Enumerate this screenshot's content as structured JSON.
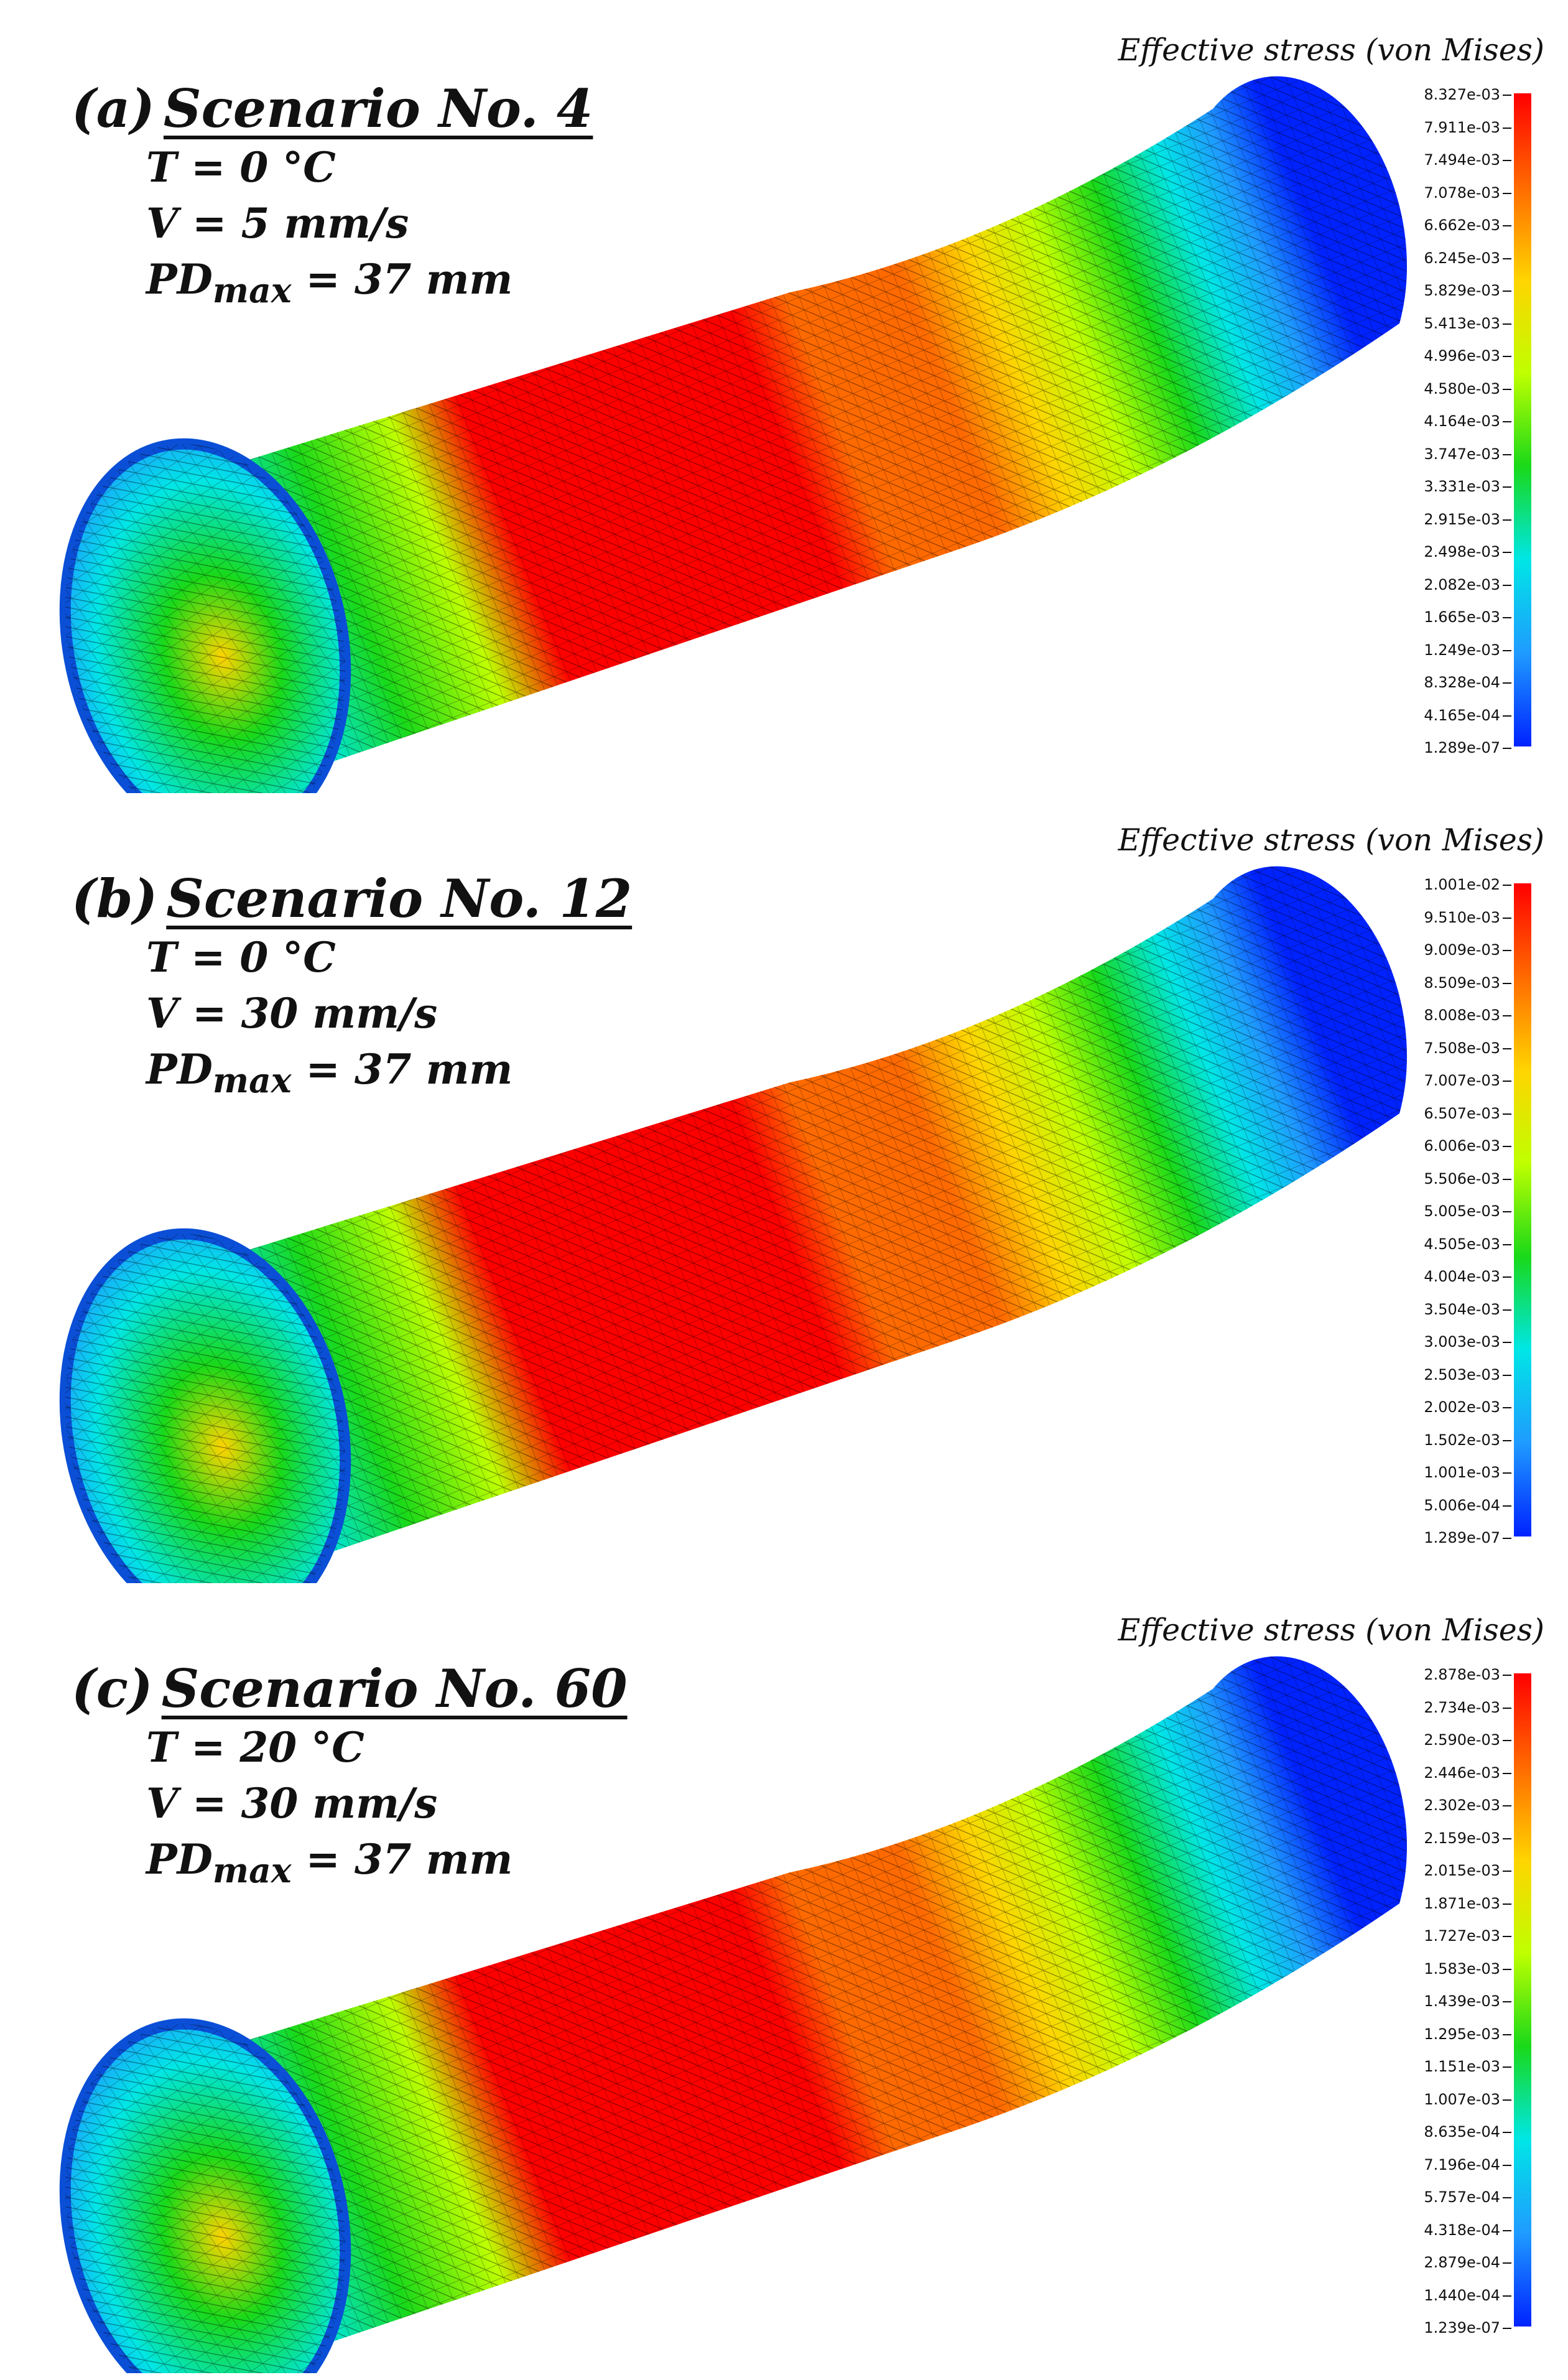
{
  "panels": [
    {
      "letter": "(a)",
      "scenario": "Scenario No. 4",
      "temperature": "T = 0 °C",
      "velocity": "V = 5 mm/s",
      "pd_label": "PD",
      "pd_sub": "max",
      "pd_value": " = 37 mm",
      "legend_title": "Effective stress (von Mises)",
      "ticks": [
        "8.327e-03",
        "7.911e-03",
        "7.494e-03",
        "7.078e-03",
        "6.662e-03",
        "6.245e-03",
        "5.829e-03",
        "5.413e-03",
        "4.996e-03",
        "4.580e-03",
        "4.164e-03",
        "3.747e-03",
        "3.331e-03",
        "2.915e-03",
        "2.498e-03",
        "2.082e-03",
        "1.665e-03",
        "1.249e-03",
        "8.328e-04",
        "4.165e-04",
        "1.289e-07"
      ]
    },
    {
      "letter": "(b)",
      "scenario": "Scenario No. 12",
      "temperature": "T = 0 °C",
      "velocity": "V = 30 mm/s",
      "pd_label": "PD",
      "pd_sub": "max",
      "pd_value": " = 37 mm",
      "legend_title": "Effective stress (von Mises)",
      "ticks": [
        "1.001e-02",
        "9.510e-03",
        "9.009e-03",
        "8.509e-03",
        "8.008e-03",
        "7.508e-03",
        "7.007e-03",
        "6.507e-03",
        "6.006e-03",
        "5.506e-03",
        "5.005e-03",
        "4.505e-03",
        "4.004e-03",
        "3.504e-03",
        "3.003e-03",
        "2.503e-03",
        "2.002e-03",
        "1.502e-03",
        "1.001e-03",
        "5.006e-04",
        "1.289e-07"
      ]
    },
    {
      "letter": "(c)",
      "scenario": "Scenario No. 60",
      "temperature": "T = 20 °C",
      "velocity": "V = 30 mm/s",
      "pd_label": "PD",
      "pd_sub": "max",
      "pd_value": " = 37 mm",
      "legend_title": "Effective stress (von Mises)",
      "ticks": [
        "2.878e-03",
        "2.734e-03",
        "2.590e-03",
        "2.446e-03",
        "2.302e-03",
        "2.159e-03",
        "2.015e-03",
        "1.871e-03",
        "1.727e-03",
        "1.583e-03",
        "1.439e-03",
        "1.295e-03",
        "1.151e-03",
        "1.007e-03",
        "8.635e-04",
        "7.196e-04",
        "5.757e-04",
        "4.318e-04",
        "2.879e-04",
        "1.440e-04",
        "1.239e-07"
      ]
    }
  ],
  "colormap": [
    "#ff0000",
    "#ff6a00",
    "#ffd400",
    "#bfff00",
    "#19d919",
    "#00e6e6",
    "#1f9bff",
    "#0022ff"
  ]
}
